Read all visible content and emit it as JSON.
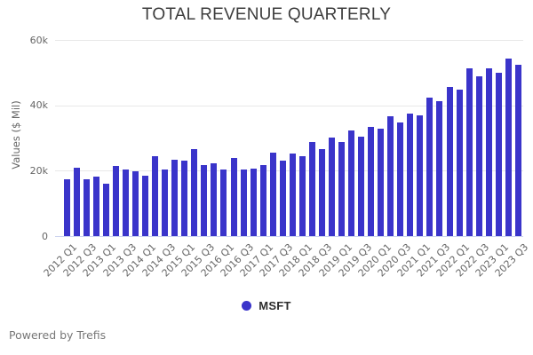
{
  "header": {
    "title": "TOTAL REVENUE QUARTERLY"
  },
  "chart_data": {
    "type": "bar",
    "title": "TOTAL REVENUE QUARTERLY",
    "xlabel": "",
    "ylabel": "Values ($ Mil)",
    "ylim": [
      0,
      60000
    ],
    "yticks": [
      0,
      20000,
      40000,
      60000
    ],
    "ytick_labels": [
      "0",
      "20k",
      "40k",
      "60k"
    ],
    "grid": true,
    "xtick_interval": 2,
    "legend_position": "bottom",
    "categories": [
      "2012 Q1",
      "2012 Q2",
      "2012 Q3",
      "2012 Q4",
      "2013 Q1",
      "2013 Q2",
      "2013 Q3",
      "2013 Q4",
      "2014 Q1",
      "2014 Q2",
      "2014 Q3",
      "2014 Q4",
      "2015 Q1",
      "2015 Q2",
      "2015 Q3",
      "2015 Q4",
      "2016 Q1",
      "2016 Q2",
      "2016 Q3",
      "2016 Q4",
      "2017 Q1",
      "2017 Q2",
      "2017 Q3",
      "2017 Q4",
      "2018 Q1",
      "2018 Q2",
      "2018 Q3",
      "2018 Q4",
      "2019 Q1",
      "2019 Q2",
      "2019 Q3",
      "2019 Q4",
      "2020 Q1",
      "2020 Q2",
      "2020 Q3",
      "2020 Q4",
      "2021 Q1",
      "2021 Q2",
      "2021 Q3",
      "2021 Q4",
      "2022 Q1",
      "2022 Q2",
      "2022 Q3",
      "2022 Q4",
      "2023 Q1",
      "2023 Q2",
      "2023 Q3"
    ],
    "series": [
      {
        "name": "MSFT",
        "color": "#3a34ca",
        "values": [
          17400,
          20900,
          17400,
          18100,
          16000,
          21500,
          20500,
          19900,
          18500,
          24500,
          20400,
          23400,
          23200,
          26500,
          21700,
          22200,
          20400,
          23800,
          20500,
          20600,
          21800,
          25400,
          23100,
          25200,
          24500,
          28900,
          26700,
          30100,
          28900,
          32300,
          30400,
          33400,
          32800,
          36600,
          34700,
          37600,
          36900,
          42500,
          41200,
          45500,
          44700,
          51200,
          48800,
          51400,
          49900,
          54300,
          52300
        ]
      }
    ]
  },
  "legend": {
    "label": "MSFT",
    "marker": "circle-icon"
  },
  "footer": {
    "text": "Powered by Trefis"
  },
  "colors": {
    "bar": "#3a34ca",
    "grid": "#e8e8e8",
    "axis_line": "#ccd3ef",
    "title_text": "#3d3d3d",
    "tick_text": "#666666",
    "footer_text": "#777777"
  }
}
